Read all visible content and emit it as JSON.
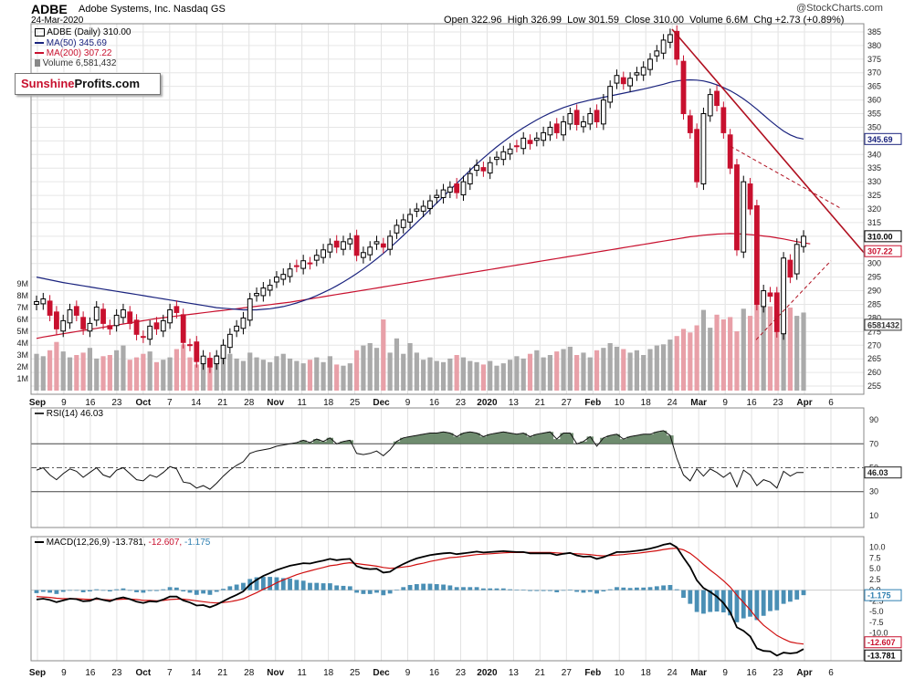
{
  "header": {
    "ticker": "ADBE",
    "company": "Adobe Systems, Inc. Nasdaq GS",
    "date": "24-Mar-2020",
    "quote": "Open 322.96  High 326.99  Low 301.59  Close 310.00  Volume 6.6M  Chg +2.73 (+0.89%)",
    "copyright": "@StockCharts.com"
  },
  "logo": {
    "part1": "Sunshine",
    "part2": "Profits.com"
  },
  "legend": {
    "price": "ADBE (Daily) 310.00",
    "ma50": "MA(50) 345.69",
    "ma200": "MA(200) 307.22",
    "volume": "Volume 6,581,432",
    "rsi": "RSI(14) 46.03",
    "macd": "MACD(12,26,9) -13.781, -12.607, -1.175",
    "macd_name": "MACD(12,26,9)",
    "macd_line": "-13.781,",
    "macd_signal": "-12.607,",
    "macd_hist": "-1.175"
  },
  "colors": {
    "up": "#000000",
    "down": "#c8102e",
    "ma50": "#1a237e",
    "ma200": "#c8102e",
    "rsi_fill": "#5f7f5f",
    "macd_hist": "#4a8fb5",
    "volume": "#aaaaaa",
    "volume_down": "#e8a0a8"
  },
  "x_labels": [
    "Sep",
    "9",
    "16",
    "23",
    "Oct",
    "7",
    "14",
    "21",
    "28",
    "Nov",
    "11",
    "18",
    "25",
    "Dec",
    "9",
    "16",
    "23",
    "2020",
    "13",
    "21",
    "27",
    "Feb",
    "10",
    "18",
    "24",
    "Mar",
    "9",
    "16",
    "23",
    "Apr",
    "6"
  ],
  "chart_data": [
    {
      "type": "candlestick",
      "title": "ADBE (Daily)",
      "ylim": [
        252,
        388
      ],
      "y_ticks": [
        255,
        260,
        265,
        270,
        275,
        280,
        285,
        290,
        295,
        300,
        305,
        310,
        315,
        320,
        325,
        330,
        335,
        340,
        345,
        350,
        355,
        360,
        365,
        370,
        375,
        380,
        385
      ],
      "volume_ticks": [
        "1M",
        "2M",
        "3M",
        "4M",
        "5M",
        "6M",
        "7M",
        "8M",
        "9M"
      ],
      "last_close": "310.00",
      "ma50_last": "345.69",
      "ma200_last": "307.22",
      "volume_last": "6581432",
      "close": [
        286,
        287,
        281,
        276,
        279,
        283,
        281,
        276,
        278,
        284,
        278,
        276,
        281,
        283,
        278,
        274,
        273,
        277,
        276,
        279,
        283,
        282,
        271,
        270,
        264,
        266,
        262,
        266,
        270,
        274,
        277,
        280,
        287,
        289,
        291,
        292,
        295,
        296,
        298,
        299,
        301,
        300,
        303,
        305,
        307,
        306,
        308,
        309,
        303,
        304,
        306,
        308,
        306,
        310,
        314,
        316,
        318,
        320,
        321,
        323,
        325,
        327,
        328,
        326,
        330,
        333,
        336,
        334,
        337,
        339,
        341,
        342,
        343,
        346,
        344,
        346,
        348,
        350,
        348,
        352,
        355,
        351,
        352,
        355,
        352,
        360,
        365,
        369,
        366,
        368,
        370,
        372,
        375,
        378,
        382,
        384,
        375,
        355,
        348,
        330,
        355,
        362,
        358,
        348,
        335,
        305,
        330,
        320,
        285,
        290,
        288,
        275,
        302,
        295,
        307,
        310
      ],
      "ma50": [
        295,
        294.5,
        294,
        293.5,
        293,
        292.6,
        292.2,
        291.8,
        291.4,
        291,
        290.6,
        290.2,
        289.8,
        289.4,
        289,
        288.6,
        288.2,
        287.8,
        287.4,
        287,
        286.6,
        286.2,
        285.8,
        285.4,
        285,
        284.6,
        284.2,
        283.8,
        283.6,
        283.4,
        283.2,
        283,
        283,
        283,
        283.2,
        283.4,
        283.8,
        284.2,
        284.8,
        285.5,
        286.3,
        287.2,
        288.2,
        289.3,
        290.5,
        291.8,
        293.2,
        294.7,
        296.3,
        298,
        299.8,
        301.7,
        303.7,
        305.8,
        308,
        310.3,
        312.6,
        315,
        317.4,
        319.8,
        322.2,
        324.6,
        327,
        329.4,
        331.8,
        334.2,
        336.5,
        338.7,
        340.8,
        342.8,
        344.7,
        346.5,
        348.2,
        349.8,
        351.3,
        352.7,
        354,
        355.2,
        356.2,
        357.2,
        358,
        358.8,
        359.4,
        360,
        360.5,
        361,
        361.5,
        362,
        362.5,
        363,
        363.5,
        364,
        364.6,
        365.2,
        365.8,
        366.5,
        367,
        367.3,
        367.4,
        367.3,
        367,
        366.4,
        365.6,
        364.6,
        363.4,
        362,
        360.4,
        358.6,
        356.6,
        354.5,
        352.4,
        350.4,
        348.6,
        347.2,
        346.2,
        345.69
      ],
      "ma200": [
        272.5,
        273,
        273.4,
        273.8,
        274.2,
        274.6,
        275,
        275.4,
        275.8,
        276.2,
        276.6,
        277,
        277.4,
        277.8,
        278.2,
        278.6,
        279,
        279.4,
        279.8,
        280.1,
        280.4,
        280.7,
        281,
        281.3,
        281.6,
        281.9,
        282.2,
        282.5,
        282.8,
        283.1,
        283.4,
        283.7,
        284,
        284.3,
        284.6,
        284.9,
        285.2,
        285.5,
        285.8,
        286.2,
        286.6,
        287,
        287.4,
        287.8,
        288.2,
        288.6,
        289,
        289.4,
        289.8,
        290.2,
        290.6,
        291,
        291.4,
        291.8,
        292.2,
        292.6,
        293,
        293.4,
        293.8,
        294.2,
        294.6,
        295,
        295.4,
        295.8,
        296.2,
        296.6,
        297,
        297.4,
        297.8,
        298.2,
        298.6,
        299,
        299.4,
        299.8,
        300.2,
        300.6,
        301,
        301.4,
        301.8,
        302.2,
        302.6,
        303,
        303.4,
        303.8,
        304.2,
        304.6,
        305,
        305.4,
        305.8,
        306.2,
        306.6,
        307,
        307.4,
        307.8,
        308.2,
        308.6,
        309,
        309.4,
        309.8,
        310.1,
        310.4,
        310.6,
        310.8,
        310.9,
        311,
        310.9,
        310.8,
        310.6,
        310.4,
        310.1,
        309.8,
        309.4,
        309,
        308.5,
        308,
        307.6,
        307.22
      ],
      "volume_millions": [
        3.1,
        2.9,
        3.4,
        4.1,
        3.3,
        2.8,
        3.0,
        3.2,
        3.6,
        2.7,
        2.9,
        3.0,
        3.4,
        3.8,
        2.6,
        2.8,
        3.1,
        3.3,
        2.4,
        2.6,
        2.8,
        3.5,
        3.9,
        2.8,
        2.2,
        2.3,
        2.6,
        3.0,
        3.4,
        3.1,
        2.7,
        2.5,
        3.2,
        2.8,
        2.6,
        2.4,
        2.9,
        3.1,
        2.7,
        2.5,
        2.3,
        2.6,
        2.8,
        2.4,
        2.9,
        2.2,
        2.1,
        2.3,
        3.4,
        3.8,
        4.0,
        3.6,
        6.0,
        3.2,
        4.4,
        3.1,
        4.0,
        3.2,
        2.6,
        2.8,
        2.5,
        2.4,
        2.7,
        3.0,
        2.8,
        2.5,
        2.4,
        2.2,
        2.5,
        2.1,
        2.3,
        2.6,
        2.9,
        2.7,
        3.1,
        3.4,
        2.8,
        3.0,
        3.3,
        3.5,
        3.7,
        3.0,
        3.2,
        2.8,
        3.4,
        3.6,
        4.0,
        3.7,
        3.5,
        3.2,
        3.4,
        3.0,
        3.5,
        3.8,
        3.9,
        4.3,
        4.6,
        5.2,
        4.9,
        5.5,
        6.8,
        5.3,
        6.4,
        6.0,
        6.2,
        5.0,
        6.9,
        6.3,
        7.4,
        8.4,
        7.1,
        6.8,
        7.6,
        7.0,
        6.3,
        6.58
      ]
    },
    {
      "type": "line",
      "title": "RSI(14)",
      "ylim": [
        0,
        100
      ],
      "y_ticks": [
        10,
        30,
        50,
        70,
        90
      ],
      "overbought": 70,
      "oversold": 30,
      "last_value": "46.03",
      "values": [
        48,
        50,
        44,
        40,
        45,
        49,
        47,
        42,
        46,
        50,
        44,
        42,
        48,
        50,
        45,
        40,
        39,
        44,
        42,
        46,
        51,
        49,
        38,
        37,
        33,
        35,
        32,
        37,
        43,
        48,
        52,
        55,
        62,
        64,
        65,
        66,
        68,
        69,
        70,
        71,
        73,
        71,
        74,
        72,
        75,
        70,
        72,
        73,
        62,
        61,
        62,
        64,
        60,
        65,
        72,
        75,
        76,
        77,
        78,
        79,
        79,
        80,
        79,
        76,
        79,
        80,
        79,
        76,
        78,
        79,
        80,
        79,
        78,
        79,
        76,
        78,
        79,
        80,
        74,
        79,
        79,
        70,
        72,
        76,
        68,
        75,
        77,
        78,
        74,
        76,
        77,
        78,
        78,
        80,
        81,
        77,
        58,
        44,
        39,
        49,
        43,
        49,
        46,
        42,
        46,
        34,
        48,
        44,
        35,
        40,
        38,
        33,
        47,
        43,
        46,
        46.03
      ]
    },
    {
      "type": "line",
      "title": "MACD(12,26,9)",
      "ylim": [
        -16.5,
        12.5
      ],
      "y_ticks": [
        -15,
        -12.5,
        -10,
        -7.5,
        -5,
        -2.5,
        0,
        2.5,
        5,
        7.5,
        10
      ],
      "last_values": {
        "macd": "-13.781",
        "signal": "-12.607",
        "histogram": "-1.175"
      },
      "macd": [
        -2.2,
        -2.0,
        -2.3,
        -2.8,
        -2.4,
        -2.0,
        -2.1,
        -2.6,
        -2.5,
        -1.9,
        -2.3,
        -2.6,
        -2.0,
        -1.7,
        -2.1,
        -2.7,
        -3.0,
        -2.6,
        -2.7,
        -2.2,
        -1.5,
        -1.5,
        -2.4,
        -2.9,
        -3.6,
        -3.5,
        -4.0,
        -3.4,
        -2.6,
        -1.8,
        -1.1,
        -0.3,
        1.3,
        2.4,
        3.3,
        4.0,
        4.7,
        5.2,
        5.7,
        6.0,
        6.3,
        6.2,
        6.6,
        6.9,
        7.3,
        7.0,
        7.2,
        7.3,
        5.6,
        5.1,
        4.9,
        5.0,
        4.1,
        4.3,
        5.3,
        6.1,
        6.8,
        7.4,
        7.8,
        8.2,
        8.4,
        8.6,
        8.7,
        8.4,
        8.6,
        8.8,
        9.0,
        8.8,
        8.9,
        9.0,
        9.1,
        9.0,
        8.9,
        8.9,
        8.6,
        8.6,
        8.6,
        8.6,
        8.2,
        8.5,
        8.7,
        8.1,
        7.8,
        7.9,
        7.3,
        7.7,
        8.3,
        8.9,
        8.9,
        9.0,
        9.2,
        9.4,
        9.7,
        10.1,
        10.6,
        10.9,
        10.0,
        7.6,
        5.4,
        2.3,
        0.5,
        -0.4,
        -1.5,
        -3.0,
        -5.2,
        -8.7,
        -9.5,
        -10.8,
        -13.6,
        -14.2,
        -14.3,
        -15.3,
        -14.6,
        -14.8,
        -14.6,
        -13.781
      ],
      "signal": [
        -1.5,
        -1.6,
        -1.7,
        -1.9,
        -2.0,
        -2.0,
        -2.0,
        -2.1,
        -2.2,
        -2.1,
        -2.2,
        -2.3,
        -2.2,
        -2.1,
        -2.1,
        -2.2,
        -2.4,
        -2.4,
        -2.5,
        -2.4,
        -2.2,
        -2.1,
        -2.1,
        -2.3,
        -2.5,
        -2.7,
        -2.9,
        -3.0,
        -2.9,
        -2.7,
        -2.4,
        -2.0,
        -1.3,
        -0.6,
        0.2,
        0.9,
        1.7,
        2.4,
        3.0,
        3.6,
        4.1,
        4.5,
        4.9,
        5.3,
        5.7,
        5.9,
        6.2,
        6.4,
        6.2,
        6.0,
        5.8,
        5.6,
        5.3,
        5.1,
        5.2,
        5.4,
        5.6,
        6.0,
        6.3,
        6.7,
        7.0,
        7.3,
        7.6,
        7.7,
        7.9,
        8.1,
        8.3,
        8.4,
        8.5,
        8.6,
        8.7,
        8.8,
        8.8,
        8.8,
        8.8,
        8.8,
        8.8,
        8.8,
        8.7,
        8.6,
        8.6,
        8.5,
        8.4,
        8.3,
        8.1,
        8.0,
        8.1,
        8.2,
        8.3,
        8.5,
        8.6,
        8.8,
        9.0,
        9.2,
        9.5,
        9.7,
        9.8,
        9.4,
        8.6,
        7.4,
        6.0,
        4.7,
        3.5,
        2.2,
        0.7,
        -1.2,
        -2.9,
        -4.6,
        -6.6,
        -8.2,
        -9.4,
        -10.6,
        -11.4,
        -12.1,
        -12.4,
        -12.607
      ],
      "histogram": [
        -0.7,
        -0.4,
        -0.6,
        -0.9,
        -0.4,
        0,
        -0.1,
        -0.5,
        -0.3,
        0.2,
        -0.1,
        -0.3,
        0.2,
        0.4,
        0,
        -0.5,
        -0.6,
        -0.2,
        -0.2,
        0.2,
        0.7,
        0.6,
        -0.3,
        -0.6,
        -1.1,
        -0.8,
        -1.1,
        -0.4,
        0.3,
        0.9,
        1.3,
        1.7,
        2.6,
        3.0,
        3.1,
        3.1,
        3.0,
        2.8,
        2.7,
        2.4,
        2.2,
        1.7,
        1.7,
        1.6,
        1.6,
        1.1,
        1.0,
        0.9,
        -0.6,
        -0.9,
        -0.9,
        -0.6,
        -1.2,
        -0.8,
        0.1,
        0.7,
        1.2,
        1.4,
        1.5,
        1.5,
        1.4,
        1.3,
        1.1,
        0.7,
        0.7,
        0.7,
        0.7,
        0.4,
        0.4,
        0.4,
        0.4,
        0.2,
        0.1,
        0.1,
        -0.2,
        -0.2,
        -0.2,
        -0.2,
        -0.5,
        -0.1,
        0.1,
        -0.4,
        -0.6,
        -0.4,
        -0.8,
        -0.3,
        0.2,
        0.7,
        0.6,
        0.5,
        0.6,
        0.6,
        0.7,
        0.9,
        1.1,
        1.2,
        0.2,
        -1.8,
        -3.2,
        -5.1,
        -5.5,
        -5.1,
        -5.0,
        -5.2,
        -5.9,
        -7.5,
        -6.6,
        -6.2,
        -7.0,
        -6.0,
        -4.9,
        -4.7,
        -3.2,
        -2.7,
        -2.2,
        -1.175
      ]
    }
  ]
}
